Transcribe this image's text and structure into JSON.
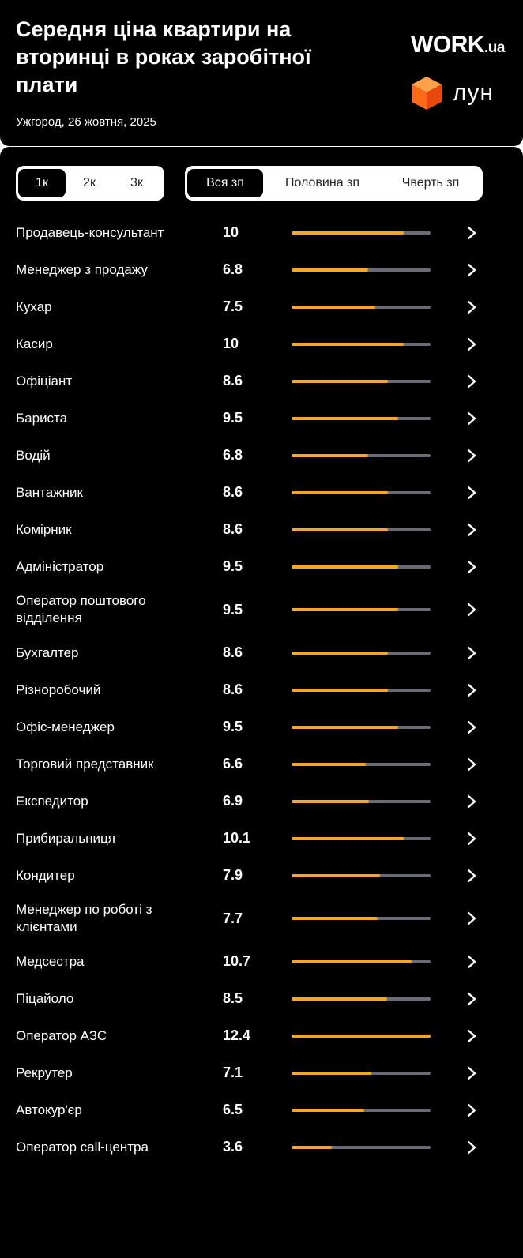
{
  "header": {
    "title": "Середня ціна квартири на вторинці в роках заробітної плати",
    "subtitle": "Ужгород, 26 жовтня, 2025",
    "work_logo": "WORK",
    "work_logo_suffix": ".ua",
    "lun_logo": "лун"
  },
  "filters": {
    "rooms": [
      {
        "label": "1к",
        "active": true
      },
      {
        "label": "2к",
        "active": false
      },
      {
        "label": "3к",
        "active": false
      }
    ],
    "share": [
      {
        "label": "Вся зп",
        "active": true
      },
      {
        "label": "Половина зп",
        "active": false
      },
      {
        "label": "Чверть зп",
        "active": false
      }
    ]
  },
  "colors": {
    "accent": "#f6a623",
    "track": "#6b6b75",
    "background": "#000000",
    "lun_cube": "#ff6a1a"
  },
  "scale_max": 12.4,
  "professions": [
    {
      "name": "Продавець-консультант",
      "value": "10"
    },
    {
      "name": "Менеджер з продажу",
      "value": "6.8"
    },
    {
      "name": "Кухар",
      "value": "7.5"
    },
    {
      "name": "Касир",
      "value": "10"
    },
    {
      "name": "Офіціант",
      "value": "8.6"
    },
    {
      "name": "Бариста",
      "value": "9.5"
    },
    {
      "name": "Водій",
      "value": "6.8"
    },
    {
      "name": "Вантажник",
      "value": "8.6"
    },
    {
      "name": "Комірник",
      "value": "8.6"
    },
    {
      "name": "Адміністратор",
      "value": "9.5"
    },
    {
      "name": "Оператор поштового відділення",
      "value": "9.5"
    },
    {
      "name": "Бухгалтер",
      "value": "8.6"
    },
    {
      "name": "Різноробочий",
      "value": "8.6"
    },
    {
      "name": "Офіс-менеджер",
      "value": "9.5"
    },
    {
      "name": "Торговий представник",
      "value": "6.6"
    },
    {
      "name": "Експедитор",
      "value": "6.9"
    },
    {
      "name": "Прибиральниця",
      "value": "10.1"
    },
    {
      "name": "Кондитер",
      "value": "7.9"
    },
    {
      "name": "Менеджер по роботі з клієнтами",
      "value": "7.7"
    },
    {
      "name": "Медсестра",
      "value": "10.7"
    },
    {
      "name": "Піцайоло",
      "value": "8.5"
    },
    {
      "name": "Оператор АЗС",
      "value": "12.4"
    },
    {
      "name": "Рекрутер",
      "value": "7.1"
    },
    {
      "name": "Автокур'єр",
      "value": "6.5"
    },
    {
      "name": "Оператор call-центра",
      "value": "3.6"
    }
  ],
  "icons": {
    "row_arrow": "chevron-right-icon",
    "lun_logo": "cube-icon"
  }
}
